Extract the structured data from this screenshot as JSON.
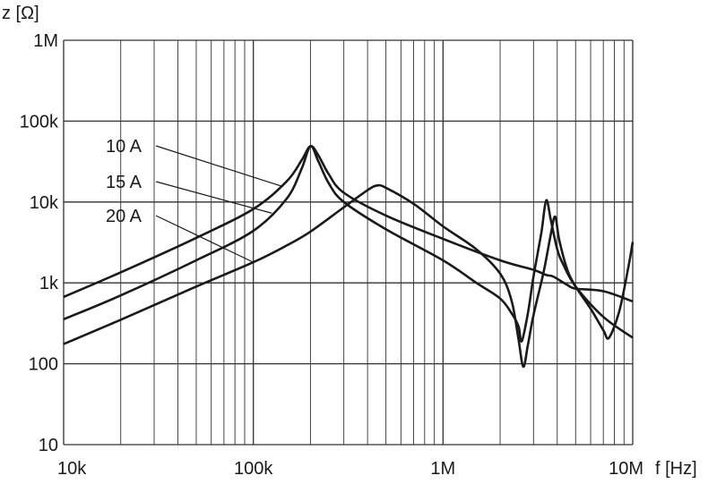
{
  "chart_data": {
    "type": "line",
    "title": "",
    "xlabel": "f [Hz]",
    "ylabel": "z [Ω]",
    "xscale": "log",
    "yscale": "log",
    "xlim": [
      10000,
      10000000
    ],
    "ylim": [
      10,
      1000000
    ],
    "grid": true,
    "x_ticks": [
      {
        "value": 10000,
        "label": "10k"
      },
      {
        "value": 100000,
        "label": "100k"
      },
      {
        "value": 1000000,
        "label": "1M"
      },
      {
        "value": 10000000,
        "label": "10M"
      }
    ],
    "y_ticks": [
      {
        "value": 10,
        "label": "10"
      },
      {
        "value": 100,
        "label": "100"
      },
      {
        "value": 1000,
        "label": "1k"
      },
      {
        "value": 10000,
        "label": "10k"
      },
      {
        "value": 100000,
        "label": "100k"
      },
      {
        "value": 1000000,
        "label": "1M"
      }
    ],
    "series": [
      {
        "name": "10 A",
        "points": [
          [
            10000,
            670
          ],
          [
            20000,
            1350
          ],
          [
            50000,
            3600
          ],
          [
            100000,
            8200
          ],
          [
            150000,
            18000
          ],
          [
            180000,
            33000
          ],
          [
            200000,
            49000
          ],
          [
            220000,
            38000
          ],
          [
            250000,
            22000
          ],
          [
            300000,
            13000
          ],
          [
            500000,
            6800
          ],
          [
            1000000,
            3500
          ],
          [
            2000000,
            1900
          ],
          [
            3000000,
            1450
          ],
          [
            3500000,
            1250
          ],
          [
            3800000,
            1200
          ],
          [
            4500000,
            950
          ],
          [
            5000000,
            850
          ],
          [
            7000000,
            790
          ],
          [
            10000000,
            590
          ]
        ]
      },
      {
        "name": "15 A",
        "points": [
          [
            10000,
            355
          ],
          [
            20000,
            700
          ],
          [
            50000,
            1900
          ],
          [
            100000,
            4400
          ],
          [
            150000,
            11000
          ],
          [
            180000,
            26000
          ],
          [
            200000,
            49000
          ],
          [
            220000,
            32000
          ],
          [
            250000,
            17000
          ],
          [
            300000,
            10000
          ],
          [
            500000,
            4600
          ],
          [
            1000000,
            1900
          ],
          [
            1500000,
            1000
          ],
          [
            2000000,
            640
          ],
          [
            2300000,
            420
          ],
          [
            2500000,
            290
          ],
          [
            2600000,
            190
          ],
          [
            2800000,
            420
          ],
          [
            3000000,
            1200
          ],
          [
            3300000,
            4200
          ],
          [
            3500000,
            10500
          ],
          [
            3700000,
            6000
          ],
          [
            4000000,
            2600
          ],
          [
            4300000,
            1700
          ],
          [
            5000000,
            900
          ],
          [
            7000000,
            380
          ],
          [
            10000000,
            210
          ]
        ]
      },
      {
        "name": "20 A",
        "points": [
          [
            10000,
            175
          ],
          [
            20000,
            350
          ],
          [
            50000,
            900
          ],
          [
            100000,
            1800
          ],
          [
            150000,
            2900
          ],
          [
            200000,
            4300
          ],
          [
            300000,
            8600
          ],
          [
            400000,
            14000
          ],
          [
            450000,
            16000
          ],
          [
            500000,
            15000
          ],
          [
            700000,
            9500
          ],
          [
            1000000,
            5000
          ],
          [
            1500000,
            2600
          ],
          [
            2000000,
            1300
          ],
          [
            2300000,
            600
          ],
          [
            2500000,
            200
          ],
          [
            2650000,
            92
          ],
          [
            2800000,
            170
          ],
          [
            3000000,
            400
          ],
          [
            3400000,
            1400
          ],
          [
            3700000,
            4000
          ],
          [
            3900000,
            6600
          ],
          [
            4100000,
            3400
          ],
          [
            4500000,
            1500
          ],
          [
            5000000,
            900
          ],
          [
            6000000,
            480
          ],
          [
            7000000,
            260
          ],
          [
            7500000,
            210
          ],
          [
            8500000,
            450
          ],
          [
            9500000,
            1600
          ],
          [
            10000000,
            3200
          ]
        ]
      }
    ]
  }
}
